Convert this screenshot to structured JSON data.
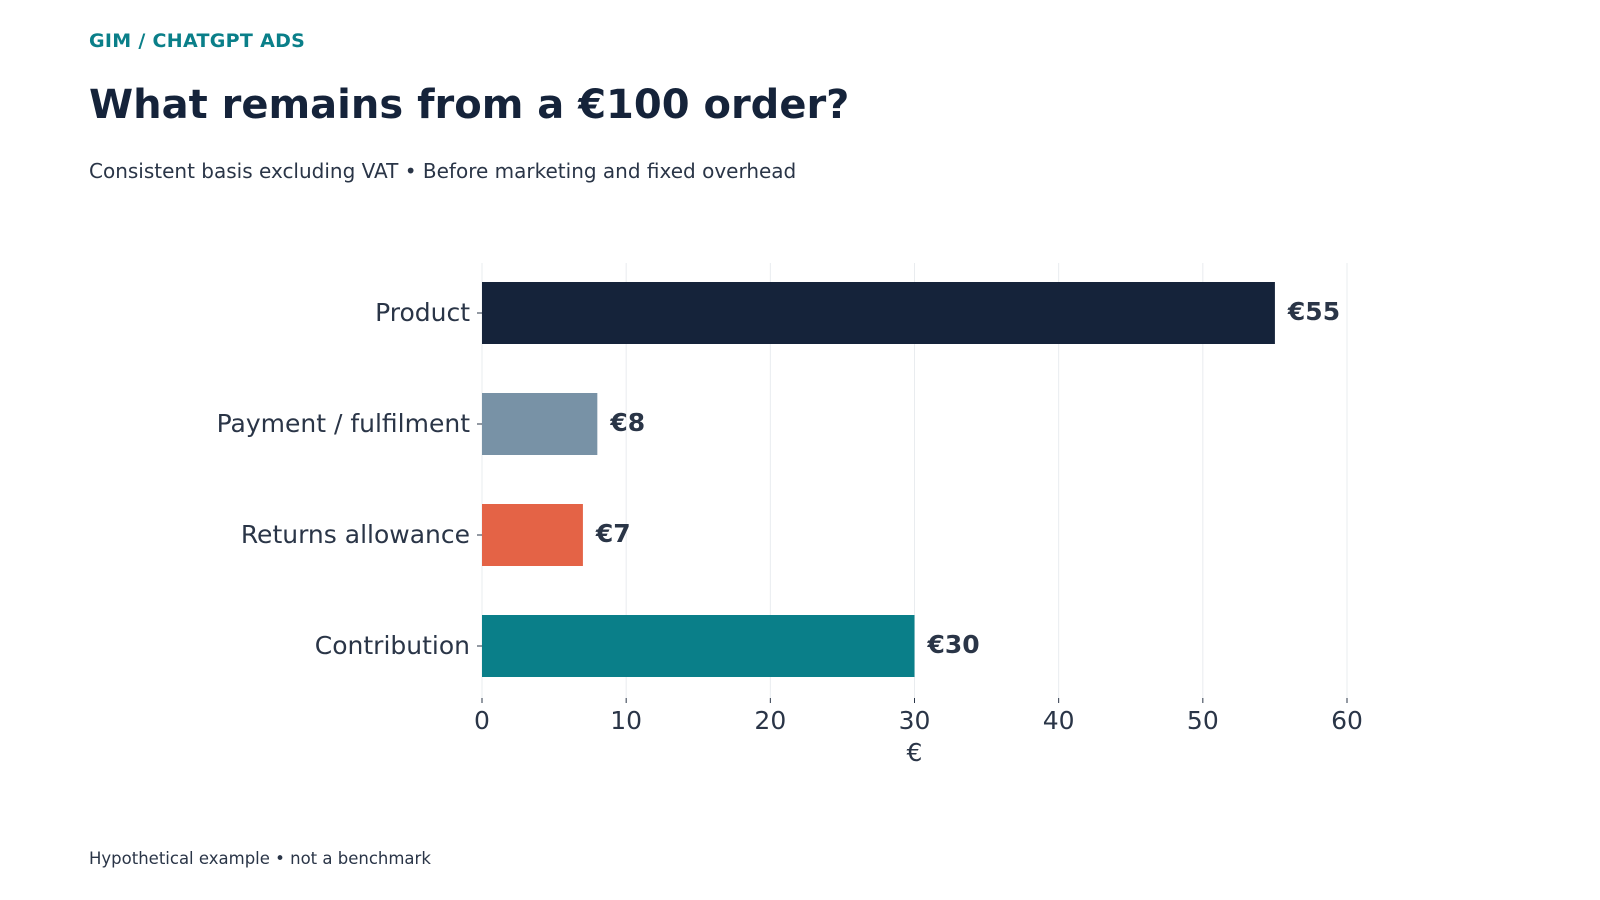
{
  "header": {
    "kicker": "GIM / CHATGPT ADS",
    "title": "What remains from a €100 order?",
    "subtitle": "Consistent basis excluding VAT • Before marketing and fixed overhead"
  },
  "footer": {
    "note": "Hypothetical example • not a benchmark"
  },
  "chart_data": {
    "type": "bar",
    "orientation": "horizontal",
    "categories": [
      "Product",
      "Payment / fulfilment",
      "Returns allowance",
      "Contribution"
    ],
    "values": [
      55,
      8,
      7,
      30
    ],
    "value_labels": [
      "€55",
      "€8",
      "€7",
      "€30"
    ],
    "colors": [
      "#15233a",
      "#7892a6",
      "#e46346",
      "#0a7f89"
    ],
    "xlabel": "€",
    "ylabel": "",
    "xlim": [
      0,
      60
    ],
    "xticks": [
      0,
      10,
      20,
      30,
      40,
      50,
      60
    ],
    "grid": "vertical",
    "legend": "none"
  }
}
